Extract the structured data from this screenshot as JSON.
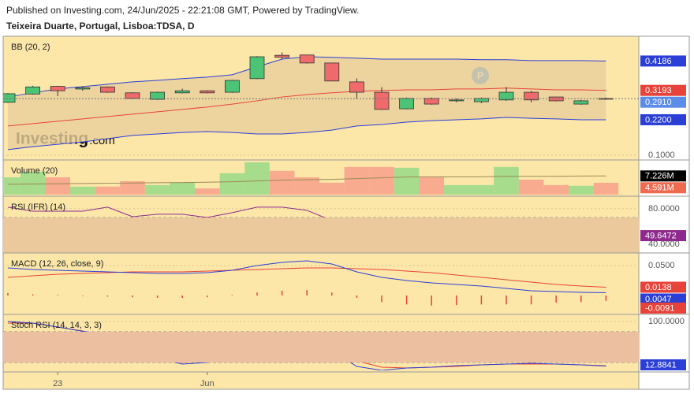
{
  "header": {
    "line1": "Published on Investing.com, 24/Jun/2025 - 22:21:08 GMT, Powered by TradingView.",
    "line2": "Teixeira Duarte, Portugal, Lisboa:TDSA, D",
    "logo": "Investing",
    "logo_suffix": ".com"
  },
  "chart_data": [
    {
      "type": "candlestick",
      "title": "BB (20, 2)",
      "ylim": [
        0.084,
        0.497
      ],
      "yticks": [
        {
          "value": 0.1,
          "label": "0.1000"
        }
      ],
      "up_color": "#4cc476",
      "down_color": "#ef6a6a",
      "fill_color": "#e8cf9c",
      "open": [
        0.279,
        0.307,
        0.333,
        0.324,
        0.331,
        0.311,
        0.289,
        0.311,
        0.318,
        0.313,
        0.359,
        0.438,
        0.439,
        0.412,
        0.348,
        0.313,
        0.257,
        0.292,
        0.284,
        0.281,
        0.287,
        0.313,
        0.297,
        0.273,
        0.292
      ],
      "high": [
        0.31,
        0.335,
        0.335,
        0.333,
        0.333,
        0.313,
        0.315,
        0.325,
        0.32,
        0.355,
        0.435,
        0.448,
        0.44,
        0.413,
        0.36,
        0.33,
        0.295,
        0.295,
        0.292,
        0.295,
        0.33,
        0.318,
        0.297,
        0.287,
        0.295
      ],
      "low": [
        0.277,
        0.305,
        0.3,
        0.318,
        0.311,
        0.29,
        0.287,
        0.309,
        0.309,
        0.311,
        0.357,
        0.425,
        0.41,
        0.35,
        0.29,
        0.253,
        0.255,
        0.271,
        0.279,
        0.276,
        0.284,
        0.279,
        0.282,
        0.271,
        0.287
      ],
      "close": [
        0.308,
        0.331,
        0.318,
        0.328,
        0.313,
        0.292,
        0.313,
        0.318,
        0.311,
        0.353,
        0.433,
        0.431,
        0.412,
        0.351,
        0.313,
        0.255,
        0.292,
        0.273,
        0.287,
        0.292,
        0.313,
        0.287,
        0.284,
        0.284,
        0.291
      ],
      "close_label": "0.2910",
      "close_color": "#5b8de8",
      "series": [
        {
          "color": "#2b3fd6",
          "values": [
            0.297,
            0.311,
            0.324,
            0.332,
            0.34,
            0.348,
            0.353,
            0.359,
            0.364,
            0.372,
            0.399,
            0.425,
            0.433,
            0.431,
            0.428,
            0.425,
            0.425,
            0.425,
            0.425,
            0.423,
            0.423,
            0.42,
            0.42,
            0.42,
            0.4186
          ]
        },
        {
          "color": "#e8433a",
          "values": [
            0.199,
            0.207,
            0.215,
            0.223,
            0.231,
            0.239,
            0.247,
            0.255,
            0.263,
            0.273,
            0.284,
            0.297,
            0.305,
            0.311,
            0.316,
            0.319,
            0.321,
            0.321,
            0.324,
            0.324,
            0.327,
            0.324,
            0.321,
            0.321,
            0.3193
          ]
        },
        {
          "color": "#2b3fd6",
          "values": [
            0.119,
            0.129,
            0.137,
            0.145,
            0.156,
            0.167,
            0.172,
            0.177,
            0.18,
            0.177,
            0.172,
            0.172,
            0.177,
            0.185,
            0.199,
            0.204,
            0.212,
            0.217,
            0.22,
            0.223,
            0.228,
            0.225,
            0.223,
            0.22,
            0.22
          ],
          "last_label": "0.2200"
        }
      ]
    },
    {
      "type": "bar",
      "title": "Volume (20)",
      "ylim": [
        0,
        12800000
      ],
      "up_color": "#a6dc8c",
      "down_color": "#f8ab8e",
      "last_label": "4.591M",
      "values": [
        6700000,
        8900000,
        6700000,
        3100000,
        3100000,
        5200000,
        3700000,
        4600000,
        2400000,
        8300000,
        12500000,
        9200000,
        6700000,
        4600000,
        10700000,
        10700000,
        10400000,
        6700000,
        3700000,
        3700000,
        10700000,
        5800000,
        3700000,
        3400000,
        4591000
      ],
      "series": [
        {
          "color": "#9c8a58",
          "label_color": "#000000",
          "values": [
            4000000,
            4100000,
            4200000,
            4300000,
            4400000,
            4500000,
            4600000,
            4700000,
            4800000,
            5000000,
            5300000,
            5600000,
            5800000,
            5900000,
            6200000,
            6500000,
            6800000,
            6900000,
            6900000,
            6900000,
            7100000,
            7100000,
            7100000,
            7200000,
            7226000
          ],
          "last_label": "7.226M"
        }
      ]
    },
    {
      "type": "line",
      "title": "RSI (IFR) (14)",
      "ylim": [
        31,
        92.4
      ],
      "band": [
        30,
        70
      ],
      "band_color": "#ebc99c",
      "yticks": [
        {
          "value": 80,
          "label": "80.0000"
        },
        {
          "value": 40,
          "label": "40.0000"
        }
      ],
      "series": [
        {
          "color": "#8e2a8e",
          "values": [
            81.8,
            77.3,
            77.3,
            77.3,
            81.8,
            71.1,
            73.8,
            73.8,
            70.2,
            75.6,
            81.8,
            81.8,
            78.2,
            66.7,
            59.6,
            47.1,
            52.4,
            48.9,
            50.7,
            51.6,
            54.2,
            50.7,
            50.7,
            49.8,
            49.6472
          ]
        }
      ]
    },
    {
      "type": "line",
      "title": "MACD (12, 26, close, 9)",
      "ylim": [
        -0.0303,
        0.0684
      ],
      "yticks": [
        {
          "value": 0.05,
          "label": "0.0500"
        }
      ],
      "series": [
        {
          "color": "#e8433a",
          "values": [
            0.0303,
            0.0329,
            0.0355,
            0.0368,
            0.0382,
            0.0395,
            0.0395,
            0.0395,
            0.0408,
            0.0421,
            0.0434,
            0.0447,
            0.0461,
            0.0461,
            0.0447,
            0.0434,
            0.0408,
            0.0382,
            0.0342,
            0.0303,
            0.0263,
            0.0224,
            0.0184,
            0.0158,
            0.0138
          ]
        },
        {
          "color": "#2b3fd6",
          "values": [
            0.046,
            0.0434,
            0.0421,
            0.0408,
            0.0395,
            0.0382,
            0.0368,
            0.0368,
            0.0382,
            0.0421,
            0.05,
            0.0553,
            0.0579,
            0.0526,
            0.0395,
            0.0303,
            0.025,
            0.0211,
            0.0184,
            0.0158,
            0.0118,
            0.0079,
            0.0066,
            0.0053,
            0.0047
          ]
        },
        {
          "type": "bar",
          "color": "#e8433a",
          "values": [
            0.004,
            0.002,
            0.001,
            -0.001,
            -0.002,
            -0.003,
            -0.004,
            -0.004,
            -0.003,
            0.001,
            0.005,
            0.008,
            0.009,
            0.005,
            -0.004,
            -0.011,
            -0.015,
            -0.017,
            -0.016,
            -0.015,
            -0.015,
            -0.015,
            -0.012,
            -0.011,
            -0.0091
          ]
        }
      ]
    },
    {
      "type": "line",
      "title": "Stoch RSI (14, 14, 3, 3)",
      "ylim": [
        4.6,
        110.8
      ],
      "band": [
        20,
        80
      ],
      "band_color": "#ebbfa0",
      "yticks": [
        {
          "value": 100,
          "label": "100.0000"
        }
      ],
      "categories": [
        null,
        null,
        "23",
        null,
        null,
        null,
        null,
        null,
        "Jun",
        null,
        null,
        null,
        null,
        null,
        null,
        null,
        null,
        null,
        null,
        null,
        null,
        null,
        null,
        null,
        null
      ],
      "series": [
        {
          "color": "#e8433a",
          "values": [
            96.9,
            96.9,
            89.2,
            81.5,
            66.2,
            43.1,
            27.7,
            20,
            23.1,
            32.3,
            47.7,
            56.9,
            55.4,
            43.1,
            23.1,
            10.8,
            9.2,
            10.8,
            12.3,
            15.4,
            16.9,
            16.9,
            16.9,
            15.4,
            13.6759
          ]
        },
        {
          "color": "#2b3fd6",
          "values": [
            100,
            96.9,
            89.2,
            81,
            73.8,
            50.8,
            27.7,
            16.9,
            20,
            27.7,
            43.1,
            63.1,
            63.1,
            43.1,
            12.3,
            4.6,
            9.2,
            10.8,
            13.8,
            15.4,
            16.9,
            18.5,
            16.9,
            15.4,
            12.8841
          ]
        }
      ]
    }
  ]
}
